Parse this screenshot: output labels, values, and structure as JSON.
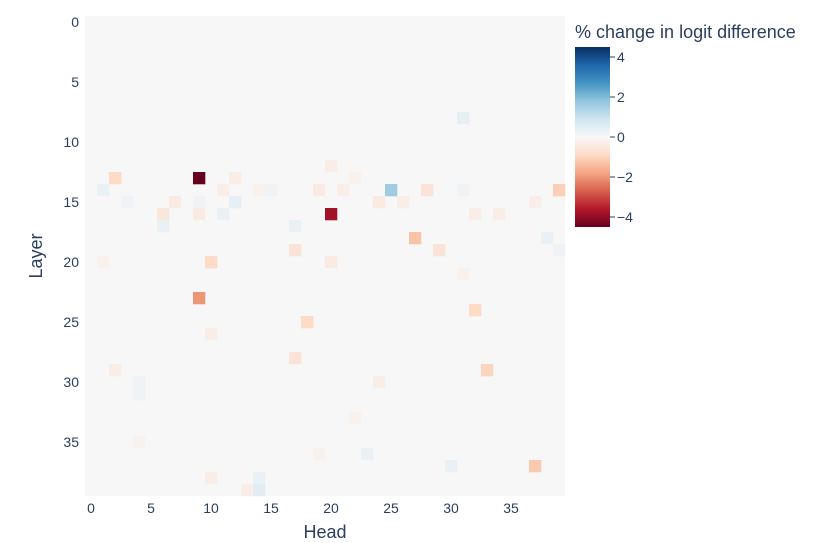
{
  "chart_data": {
    "type": "heatmap",
    "title": "",
    "xlabel": "Head",
    "ylabel": "Layer",
    "x_range": [
      0,
      39
    ],
    "y_range": [
      0,
      39
    ],
    "y_reversed": true,
    "x_ticks": [
      "0",
      "5",
      "10",
      "15",
      "20",
      "25",
      "30",
      "35"
    ],
    "y_ticks": [
      "0",
      "5",
      "10",
      "15",
      "20",
      "25",
      "30",
      "35"
    ],
    "colorbar": {
      "title": "% change in logit difference",
      "min": -4.5,
      "max": 4.5,
      "ticks": [
        "4",
        "2",
        "0",
        "−2",
        "−4"
      ],
      "tick_values": [
        4,
        2,
        0,
        -2,
        -4
      ],
      "colorscale": [
        "#67001f",
        "#b2182b",
        "#d6604d",
        "#f4a582",
        "#fddbc7",
        "#f7f7f7",
        "#d1e5f0",
        "#92c5de",
        "#4393c3",
        "#2166ac",
        "#053061"
      ]
    },
    "background_value": 0,
    "cells": [
      {
        "layer": 13,
        "head": 9,
        "value": -4.5
      },
      {
        "layer": 16,
        "head": 20,
        "value": -3.8
      },
      {
        "layer": 23,
        "head": 9,
        "value": -2.0
      },
      {
        "layer": 14,
        "head": 25,
        "value": 1.6
      },
      {
        "layer": 18,
        "head": 27,
        "value": -1.3
      },
      {
        "layer": 13,
        "head": 2,
        "value": -0.9
      },
      {
        "layer": 14,
        "head": 39,
        "value": -1.1
      },
      {
        "layer": 20,
        "head": 10,
        "value": -0.9
      },
      {
        "layer": 25,
        "head": 18,
        "value": -0.9
      },
      {
        "layer": 24,
        "head": 32,
        "value": -0.9
      },
      {
        "layer": 29,
        "head": 33,
        "value": -1.0
      },
      {
        "layer": 37,
        "head": 37,
        "value": -1.2
      },
      {
        "layer": 19,
        "head": 29,
        "value": -0.6
      },
      {
        "layer": 19,
        "head": 17,
        "value": -0.6
      },
      {
        "layer": 28,
        "head": 17,
        "value": -0.6
      },
      {
        "layer": 14,
        "head": 28,
        "value": -0.6
      },
      {
        "layer": 16,
        "head": 6,
        "value": -0.5
      },
      {
        "layer": 15,
        "head": 7,
        "value": -0.4
      },
      {
        "layer": 16,
        "head": 9,
        "value": -0.4
      },
      {
        "layer": 14,
        "head": 19,
        "value": -0.4
      },
      {
        "layer": 12,
        "head": 20,
        "value": -0.3
      },
      {
        "layer": 20,
        "head": 20,
        "value": -0.4
      },
      {
        "layer": 15,
        "head": 24,
        "value": -0.4
      },
      {
        "layer": 15,
        "head": 26,
        "value": -0.3
      },
      {
        "layer": 14,
        "head": 11,
        "value": -0.3
      },
      {
        "layer": 13,
        "head": 12,
        "value": -0.3
      },
      {
        "layer": 26,
        "head": 10,
        "value": -0.3
      },
      {
        "layer": 38,
        "head": 10,
        "value": -0.3
      },
      {
        "layer": 39,
        "head": 13,
        "value": -0.3
      },
      {
        "layer": 36,
        "head": 19,
        "value": -0.2
      },
      {
        "layer": 29,
        "head": 2,
        "value": -0.3
      },
      {
        "layer": 20,
        "head": 1,
        "value": -0.2
      },
      {
        "layer": 16,
        "head": 32,
        "value": -0.3
      },
      {
        "layer": 16,
        "head": 34,
        "value": -0.3
      },
      {
        "layer": 15,
        "head": 37,
        "value": -0.3
      },
      {
        "layer": 14,
        "head": 21,
        "value": -0.3
      },
      {
        "layer": 13,
        "head": 22,
        "value": -0.2
      },
      {
        "layer": 14,
        "head": 14,
        "value": -0.2
      },
      {
        "layer": 30,
        "head": 24,
        "value": -0.3
      },
      {
        "layer": 21,
        "head": 31,
        "value": -0.2
      },
      {
        "layer": 33,
        "head": 22,
        "value": -0.2
      },
      {
        "layer": 35,
        "head": 4,
        "value": -0.2
      },
      {
        "layer": 8,
        "head": 31,
        "value": 0.4
      },
      {
        "layer": 14,
        "head": 1,
        "value": 0.3
      },
      {
        "layer": 15,
        "head": 12,
        "value": 0.4
      },
      {
        "layer": 17,
        "head": 17,
        "value": 0.3
      },
      {
        "layer": 17,
        "head": 6,
        "value": 0.3
      },
      {
        "layer": 15,
        "head": 9,
        "value": 0.2
      },
      {
        "layer": 18,
        "head": 38,
        "value": 0.3
      },
      {
        "layer": 14,
        "head": 15,
        "value": 0.2
      },
      {
        "layer": 16,
        "head": 11,
        "value": 0.3
      },
      {
        "layer": 19,
        "head": 39,
        "value": 0.2
      },
      {
        "layer": 37,
        "head": 30,
        "value": 0.3
      },
      {
        "layer": 36,
        "head": 23,
        "value": 0.3
      },
      {
        "layer": 39,
        "head": 14,
        "value": 0.5
      },
      {
        "layer": 38,
        "head": 14,
        "value": 0.3
      },
      {
        "layer": 30,
        "head": 4,
        "value": 0.2
      },
      {
        "layer": 31,
        "head": 4,
        "value": 0.2
      },
      {
        "layer": 15,
        "head": 3,
        "value": 0.2
      },
      {
        "layer": 14,
        "head": 31,
        "value": 0.2
      }
    ]
  }
}
